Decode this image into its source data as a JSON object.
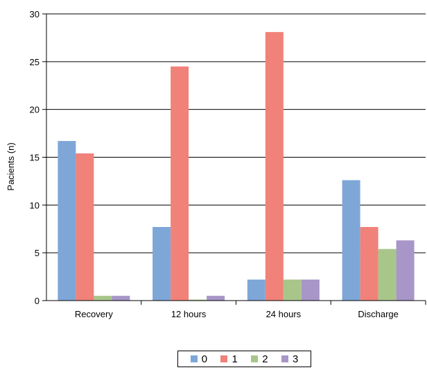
{
  "chart_data": {
    "type": "bar",
    "title": "",
    "xlabel": "",
    "ylabel": "Pacients (n)",
    "ylim": [
      0,
      30
    ],
    "yticks": [
      0,
      5,
      10,
      15,
      20,
      25,
      30
    ],
    "grid": true,
    "legend": "bottom",
    "categories": [
      "Recovery",
      "12 hours",
      "24 hours",
      "Discharge"
    ],
    "series": [
      {
        "name": "0",
        "color": "#7ea7d8",
        "values": [
          16.7,
          7.7,
          2.2,
          12.6
        ]
      },
      {
        "name": "1",
        "color": "#f0827a",
        "values": [
          15.4,
          24.5,
          28.1,
          7.7
        ]
      },
      {
        "name": "2",
        "color": "#a8c68a",
        "values": [
          0.5,
          0.1,
          2.2,
          5.4
        ]
      },
      {
        "name": "3",
        "color": "#a896c8",
        "values": [
          0.5,
          0.5,
          2.2,
          6.3
        ]
      }
    ]
  }
}
